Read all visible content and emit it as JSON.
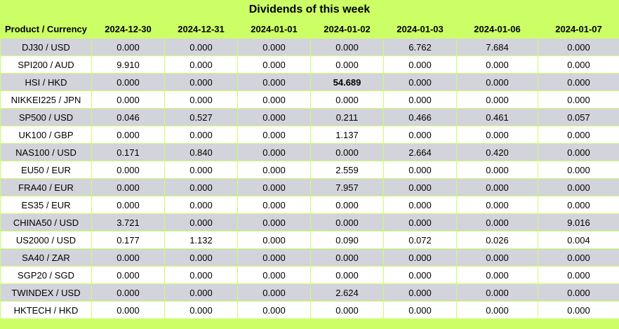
{
  "title": "Dividends of this week",
  "columns": [
    "Product / Currency",
    "2024-12-30",
    "2024-12-31",
    "2024-01-01",
    "2024-01-02",
    "2024-01-03",
    "2024-01-06",
    "2024-01-07"
  ],
  "rows": [
    [
      "DJ30 / USD",
      "0.000",
      "0.000",
      "0.000",
      "0.000",
      "6.762",
      "7.684",
      "0.000"
    ],
    [
      "SPI200 / AUD",
      "9.910",
      "0.000",
      "0.000",
      "0.000",
      "0.000",
      "0.000",
      "0.000"
    ],
    [
      "HSI / HKD",
      "0.000",
      "0.000",
      "0.000",
      "54.689",
      "0.000",
      "0.000",
      "0.000"
    ],
    [
      "NIKKEI225 / JPN",
      "0.000",
      "0.000",
      "0.000",
      "0.000",
      "0.000",
      "0.000",
      "0.000"
    ],
    [
      "SP500 / USD",
      "0.046",
      "0.527",
      "0.000",
      "0.211",
      "0.466",
      "0.461",
      "0.057"
    ],
    [
      "UK100 / GBP",
      "0.000",
      "0.000",
      "0.000",
      "1.137",
      "0.000",
      "0.000",
      "0.000"
    ],
    [
      "NAS100 / USD",
      "0.171",
      "0.840",
      "0.000",
      "0.000",
      "2.664",
      "0.420",
      "0.000"
    ],
    [
      "EU50 / EUR",
      "0.000",
      "0.000",
      "0.000",
      "2.559",
      "0.000",
      "0.000",
      "0.000"
    ],
    [
      "FRA40 / EUR",
      "0.000",
      "0.000",
      "0.000",
      "7.957",
      "0.000",
      "0.000",
      "0.000"
    ],
    [
      "ES35 / EUR",
      "0.000",
      "0.000",
      "0.000",
      "0.000",
      "0.000",
      "0.000",
      "0.000"
    ],
    [
      "CHINA50 / USD",
      "3.721",
      "0.000",
      "0.000",
      "0.000",
      "0.000",
      "0.000",
      "9.016"
    ],
    [
      "US2000 / USD",
      "0.177",
      "1.132",
      "0.000",
      "0.090",
      "0.072",
      "0.026",
      "0.004"
    ],
    [
      "SA40 / ZAR",
      "0.000",
      "0.000",
      "0.000",
      "0.000",
      "0.000",
      "0.000",
      "0.000"
    ],
    [
      "SGP20 / SGD",
      "0.000",
      "0.000",
      "0.000",
      "0.000",
      "0.000",
      "0.000",
      "0.000"
    ],
    [
      "TWINDEX / USD",
      "0.000",
      "0.000",
      "0.000",
      "2.624",
      "0.000",
      "0.000",
      "0.000"
    ],
    [
      "HKTECH / HKD",
      "0.000",
      "0.000",
      "0.000",
      "0.000",
      "0.000",
      "0.000",
      "0.000"
    ]
  ],
  "emphasized_cells": [
    [
      2,
      4
    ]
  ],
  "colors": {
    "header_bg": "#ccff66",
    "row_odd_bg": "#d3d3dc",
    "row_even_bg": "#ffffff"
  }
}
